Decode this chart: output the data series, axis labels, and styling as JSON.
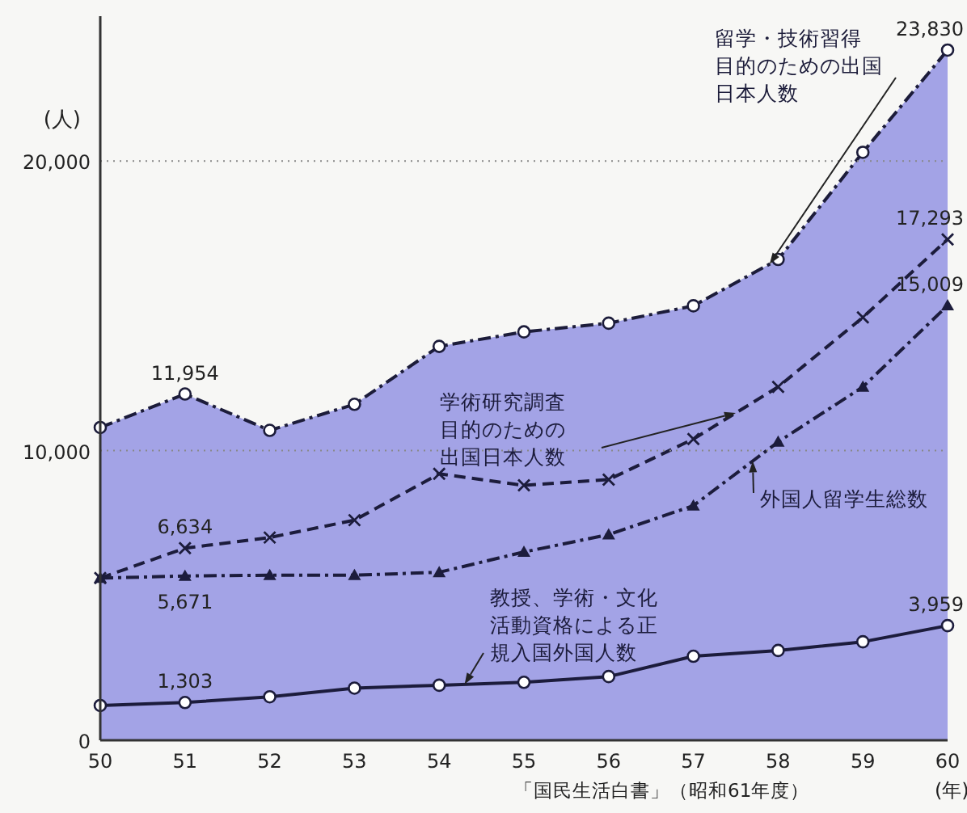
{
  "chart_data": {
    "type": "line",
    "ylabel": "(人)",
    "xlabel": "(年)",
    "x": [
      50,
      51,
      52,
      53,
      54,
      55,
      56,
      57,
      58,
      59,
      60
    ],
    "xlim": [
      50,
      60
    ],
    "xticks": [
      50,
      51,
      52,
      53,
      54,
      55,
      56,
      57,
      58,
      59,
      60
    ],
    "ylim": [
      0,
      25000
    ],
    "yticks": [
      0,
      {
        "value": 10000,
        "label": "10,000"
      },
      {
        "value": 20000,
        "label": "20,000"
      }
    ],
    "grid": "y",
    "series": [
      {
        "name": "留学・技術習得目的のための出国日本人数",
        "type": "area",
        "color": "#a3a3e6",
        "marker": "circle",
        "line_style": "dashdot",
        "values": [
          10800,
          11954,
          10700,
          11600,
          13600,
          14100,
          14400,
          15000,
          16600,
          20300,
          23830
        ],
        "value_labels": [
          null,
          "11,954",
          null,
          null,
          null,
          null,
          null,
          null,
          null,
          null,
          "23,830"
        ]
      },
      {
        "name": "学術研究調査目的のための出国日本人数",
        "color": "#1c1c3c",
        "marker": "cross",
        "line_style": "dashed",
        "values": [
          5600,
          6634,
          7000,
          7600,
          9200,
          8800,
          9000,
          10400,
          12200,
          14600,
          17293
        ],
        "value_labels": [
          null,
          "6,634",
          null,
          null,
          null,
          null,
          null,
          null,
          null,
          null,
          "17,293"
        ]
      },
      {
        "name": "外国人留学生総数",
        "color": "#1c1c3c",
        "marker": "triangle",
        "line_style": "dashdot",
        "values": [
          5600,
          5671,
          5700,
          5700,
          5800,
          6500,
          7100,
          8100,
          10300,
          12200,
          15009
        ],
        "value_labels": [
          null,
          "5,671",
          null,
          null,
          null,
          null,
          null,
          null,
          null,
          null,
          "15,009"
        ]
      },
      {
        "name": "教授、学術・文化活動資格による正規入国外国人数",
        "color": "#1c1c3c",
        "marker": "circle",
        "line_style": "solid",
        "values": [
          1200,
          1303,
          1500,
          1800,
          1900,
          2000,
          2200,
          2900,
          3100,
          3400,
          3959
        ],
        "value_labels": [
          null,
          "1,303",
          null,
          null,
          null,
          null,
          null,
          null,
          null,
          null,
          "3,959"
        ]
      }
    ],
    "annotations": [
      "「国民生活白書」（昭和61年度）"
    ]
  }
}
